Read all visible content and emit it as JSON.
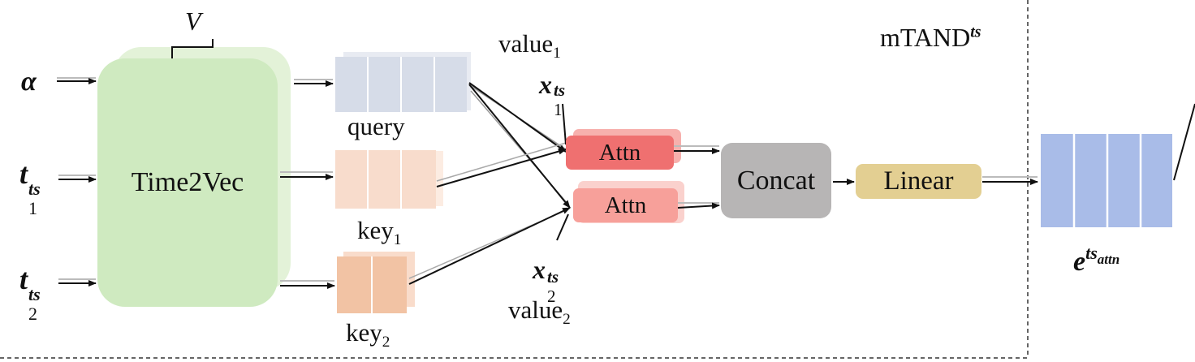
{
  "module_title": {
    "base": "mTAND",
    "sup": "ts"
  },
  "inputs": {
    "alpha": "α",
    "t1": {
      "base": "t",
      "sub": "1",
      "sup": "ts"
    },
    "t2": {
      "base": "t",
      "sub": "2",
      "sup": "ts"
    }
  },
  "time2vec": {
    "label": "Time2Vec",
    "dim_label": "V"
  },
  "query": {
    "label": "query"
  },
  "key1": {
    "base": "key",
    "sub": "1"
  },
  "key2": {
    "base": "key",
    "sub": "2"
  },
  "value1": {
    "base": "value",
    "sub": "1"
  },
  "value2": {
    "base": "value",
    "sub": "2"
  },
  "x1": {
    "base": "x",
    "sub": "1",
    "sup": "ts"
  },
  "x2": {
    "base": "x",
    "sub": "2",
    "sup": "ts"
  },
  "attn1": {
    "label": "Attn"
  },
  "attn2": {
    "label": "Attn"
  },
  "concat": {
    "label": "Concat"
  },
  "linear": {
    "label": "Linear"
  },
  "output": {
    "base": "e",
    "sup": "ts",
    "sup_sub": "attn"
  },
  "colors": {
    "time2vec": "#cfeac0",
    "query": "#d6dce8",
    "key1": "#f8dccc",
    "key2": "#f2c3a4",
    "attn1": "#ef7070",
    "attn2": "#f7a09a",
    "concat": "#b7b5b5",
    "linear": "#e3cf92",
    "output": "#a9bce8"
  }
}
